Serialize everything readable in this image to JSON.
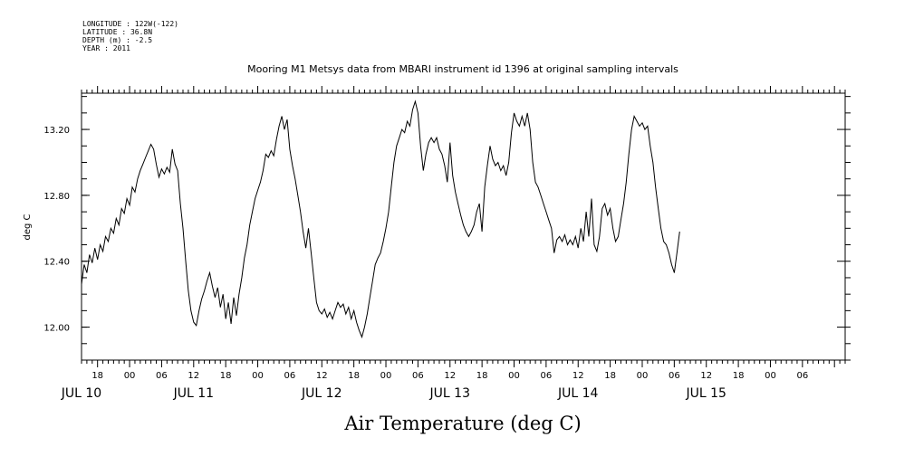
{
  "header": {
    "meta_lines": [
      "LONGITUDE : 122W(-122)",
      "LATITUDE : 36.8N",
      "DEPTH (m) : -2.5",
      "YEAR : 2011"
    ],
    "title": "Mooring M1 Metsys data from MBARI instrument id 1396 at original sampling intervals"
  },
  "chart_data": {
    "type": "line",
    "title": "Mooring M1 Metsys data from MBARI instrument id 1396 at original sampling intervals",
    "xlabel": "Air Temperature (deg C)",
    "ylabel": "deg C",
    "x_unit": "hours since 2011-07-10 00:00",
    "xlim": [
      15,
      158
    ],
    "ylim": [
      11.8,
      13.42
    ],
    "y_ticks": [
      12.0,
      12.4,
      12.8,
      13.2
    ],
    "y_tick_labels": [
      "12.00",
      "12.40",
      "12.80",
      "13.20"
    ],
    "x_hour_ticks": [
      {
        "x": 18,
        "label": "18"
      },
      {
        "x": 24,
        "label": "00"
      },
      {
        "x": 30,
        "label": "06"
      },
      {
        "x": 36,
        "label": "12"
      },
      {
        "x": 42,
        "label": "18"
      },
      {
        "x": 48,
        "label": "00"
      },
      {
        "x": 54,
        "label": "06"
      },
      {
        "x": 60,
        "label": "12"
      },
      {
        "x": 66,
        "label": "18"
      },
      {
        "x": 72,
        "label": "00"
      },
      {
        "x": 78,
        "label": "06"
      },
      {
        "x": 84,
        "label": "12"
      },
      {
        "x": 90,
        "label": "18"
      },
      {
        "x": 96,
        "label": "00"
      },
      {
        "x": 102,
        "label": "06"
      },
      {
        "x": 108,
        "label": "12"
      },
      {
        "x": 114,
        "label": "18"
      },
      {
        "x": 120,
        "label": "00"
      },
      {
        "x": 126,
        "label": "06"
      },
      {
        "x": 132,
        "label": "12"
      },
      {
        "x": 138,
        "label": "18"
      },
      {
        "x": 144,
        "label": "00"
      },
      {
        "x": 150,
        "label": "06"
      }
    ],
    "x_day_labels": [
      {
        "x": 15,
        "label": "JUL 10"
      },
      {
        "x": 36,
        "label": "JUL 11"
      },
      {
        "x": 60,
        "label": "JUL 12"
      },
      {
        "x": 84,
        "label": "JUL 13"
      },
      {
        "x": 108,
        "label": "JUL 14"
      },
      {
        "x": 132,
        "label": "JUL 15"
      }
    ],
    "series": [
      {
        "values": [
          [
            15.0,
            12.26
          ],
          [
            15.5,
            12.38
          ],
          [
            16.0,
            12.33
          ],
          [
            16.5,
            12.44
          ],
          [
            17.0,
            12.39
          ],
          [
            17.5,
            12.48
          ],
          [
            18.0,
            12.41
          ],
          [
            18.5,
            12.5
          ],
          [
            19.0,
            12.46
          ],
          [
            19.5,
            12.55
          ],
          [
            20.0,
            12.52
          ],
          [
            20.5,
            12.6
          ],
          [
            21.0,
            12.57
          ],
          [
            21.5,
            12.66
          ],
          [
            22.0,
            12.62
          ],
          [
            22.5,
            12.72
          ],
          [
            23.0,
            12.69
          ],
          [
            23.5,
            12.78
          ],
          [
            24.0,
            12.74
          ],
          [
            24.5,
            12.85
          ],
          [
            25.0,
            12.82
          ],
          [
            25.5,
            12.9
          ],
          [
            26.0,
            12.95
          ],
          [
            26.5,
            12.99
          ],
          [
            27.0,
            13.03
          ],
          [
            27.5,
            13.07
          ],
          [
            28.0,
            13.11
          ],
          [
            28.5,
            13.08
          ],
          [
            29.0,
            12.99
          ],
          [
            29.5,
            12.91
          ],
          [
            30.0,
            12.96
          ],
          [
            30.5,
            12.93
          ],
          [
            31.0,
            12.97
          ],
          [
            31.5,
            12.94
          ],
          [
            32.0,
            13.08
          ],
          [
            32.5,
            12.99
          ],
          [
            33.0,
            12.95
          ],
          [
            33.5,
            12.75
          ],
          [
            34.0,
            12.6
          ],
          [
            34.5,
            12.4
          ],
          [
            35.0,
            12.22
          ],
          [
            35.5,
            12.1
          ],
          [
            36.0,
            12.03
          ],
          [
            36.5,
            12.01
          ],
          [
            37.0,
            12.1
          ],
          [
            37.5,
            12.17
          ],
          [
            38.0,
            12.22
          ],
          [
            38.5,
            12.28
          ],
          [
            39.0,
            12.33
          ],
          [
            39.5,
            12.25
          ],
          [
            40.0,
            12.18
          ],
          [
            40.5,
            12.24
          ],
          [
            41.0,
            12.12
          ],
          [
            41.5,
            12.2
          ],
          [
            42.0,
            12.05
          ],
          [
            42.5,
            12.15
          ],
          [
            43.0,
            12.02
          ],
          [
            43.5,
            12.18
          ],
          [
            44.0,
            12.07
          ],
          [
            44.5,
            12.2
          ],
          [
            45.0,
            12.3
          ],
          [
            45.5,
            12.42
          ],
          [
            46.0,
            12.5
          ],
          [
            46.5,
            12.62
          ],
          [
            47.0,
            12.7
          ],
          [
            47.5,
            12.78
          ],
          [
            48.0,
            12.83
          ],
          [
            48.5,
            12.88
          ],
          [
            49.0,
            12.95
          ],
          [
            49.5,
            13.05
          ],
          [
            50.0,
            13.03
          ],
          [
            50.5,
            13.07
          ],
          [
            51.0,
            13.04
          ],
          [
            51.5,
            13.14
          ],
          [
            52.0,
            13.22
          ],
          [
            52.5,
            13.28
          ],
          [
            53.0,
            13.2
          ],
          [
            53.5,
            13.26
          ],
          [
            54.0,
            13.08
          ],
          [
            54.5,
            12.98
          ],
          [
            55.0,
            12.9
          ],
          [
            55.5,
            12.8
          ],
          [
            56.0,
            12.7
          ],
          [
            56.5,
            12.58
          ],
          [
            57.0,
            12.48
          ],
          [
            57.5,
            12.6
          ],
          [
            58.0,
            12.45
          ],
          [
            58.5,
            12.3
          ],
          [
            59.0,
            12.15
          ],
          [
            59.5,
            12.1
          ],
          [
            60.0,
            12.08
          ],
          [
            60.5,
            12.11
          ],
          [
            61.0,
            12.06
          ],
          [
            61.5,
            12.09
          ],
          [
            62.0,
            12.05
          ],
          [
            62.5,
            12.1
          ],
          [
            63.0,
            12.15
          ],
          [
            63.5,
            12.12
          ],
          [
            64.0,
            12.14
          ],
          [
            64.5,
            12.08
          ],
          [
            65.0,
            12.12
          ],
          [
            65.5,
            12.05
          ],
          [
            66.0,
            12.1
          ],
          [
            66.5,
            12.03
          ],
          [
            67.0,
            11.98
          ],
          [
            67.5,
            11.94
          ],
          [
            68.0,
            12.0
          ],
          [
            68.5,
            12.08
          ],
          [
            69.0,
            12.18
          ],
          [
            69.5,
            12.28
          ],
          [
            70.0,
            12.38
          ],
          [
            70.5,
            12.42
          ],
          [
            71.0,
            12.45
          ],
          [
            71.5,
            12.52
          ],
          [
            72.0,
            12.6
          ],
          [
            72.5,
            12.7
          ],
          [
            73.0,
            12.85
          ],
          [
            73.5,
            13.0
          ],
          [
            74.0,
            13.1
          ],
          [
            74.5,
            13.15
          ],
          [
            75.0,
            13.2
          ],
          [
            75.5,
            13.18
          ],
          [
            76.0,
            13.25
          ],
          [
            76.5,
            13.22
          ],
          [
            77.0,
            13.32
          ],
          [
            77.5,
            13.37
          ],
          [
            78.0,
            13.3
          ],
          [
            78.5,
            13.1
          ],
          [
            79.0,
            12.95
          ],
          [
            79.5,
            13.05
          ],
          [
            80.0,
            13.12
          ],
          [
            80.5,
            13.15
          ],
          [
            81.0,
            13.12
          ],
          [
            81.5,
            13.15
          ],
          [
            82.0,
            13.08
          ],
          [
            82.5,
            13.05
          ],
          [
            83.0,
            12.98
          ],
          [
            83.5,
            12.88
          ],
          [
            84.0,
            13.12
          ],
          [
            84.5,
            12.92
          ],
          [
            85.0,
            12.82
          ],
          [
            85.5,
            12.75
          ],
          [
            86.0,
            12.68
          ],
          [
            86.5,
            12.62
          ],
          [
            87.0,
            12.58
          ],
          [
            87.5,
            12.55
          ],
          [
            88.0,
            12.58
          ],
          [
            88.5,
            12.62
          ],
          [
            89.0,
            12.7
          ],
          [
            89.5,
            12.75
          ],
          [
            90.0,
            12.58
          ],
          [
            90.5,
            12.85
          ],
          [
            91.0,
            12.98
          ],
          [
            91.5,
            13.1
          ],
          [
            92.0,
            13.02
          ],
          [
            92.5,
            12.98
          ],
          [
            93.0,
            13.0
          ],
          [
            93.5,
            12.95
          ],
          [
            94.0,
            12.98
          ],
          [
            94.5,
            12.92
          ],
          [
            95.0,
            13.0
          ],
          [
            95.5,
            13.18
          ],
          [
            96.0,
            13.3
          ],
          [
            96.5,
            13.25
          ],
          [
            97.0,
            13.22
          ],
          [
            97.5,
            13.28
          ],
          [
            98.0,
            13.22
          ],
          [
            98.5,
            13.3
          ],
          [
            99.0,
            13.2
          ],
          [
            99.5,
            13.0
          ],
          [
            100.0,
            12.88
          ],
          [
            100.5,
            12.85
          ],
          [
            101.0,
            12.8
          ],
          [
            101.5,
            12.75
          ],
          [
            102.0,
            12.7
          ],
          [
            102.5,
            12.65
          ],
          [
            103.0,
            12.6
          ],
          [
            103.5,
            12.45
          ],
          [
            104.0,
            12.53
          ],
          [
            104.5,
            12.55
          ],
          [
            105.0,
            12.52
          ],
          [
            105.5,
            12.56
          ],
          [
            106.0,
            12.5
          ],
          [
            106.5,
            12.53
          ],
          [
            107.0,
            12.5
          ],
          [
            107.5,
            12.55
          ],
          [
            108.0,
            12.48
          ],
          [
            108.5,
            12.6
          ],
          [
            109.0,
            12.52
          ],
          [
            109.5,
            12.7
          ],
          [
            110.0,
            12.55
          ],
          [
            110.5,
            12.78
          ],
          [
            111.0,
            12.5
          ],
          [
            111.5,
            12.46
          ],
          [
            112.0,
            12.55
          ],
          [
            112.5,
            12.72
          ],
          [
            113.0,
            12.75
          ],
          [
            113.5,
            12.68
          ],
          [
            114.0,
            12.72
          ],
          [
            114.5,
            12.6
          ],
          [
            115.0,
            12.52
          ],
          [
            115.5,
            12.55
          ],
          [
            116.0,
            12.65
          ],
          [
            116.5,
            12.75
          ],
          [
            117.0,
            12.88
          ],
          [
            117.5,
            13.05
          ],
          [
            118.0,
            13.2
          ],
          [
            118.5,
            13.28
          ],
          [
            119.0,
            13.25
          ],
          [
            119.5,
            13.22
          ],
          [
            120.0,
            13.24
          ],
          [
            120.5,
            13.2
          ],
          [
            121.0,
            13.22
          ],
          [
            121.5,
            13.1
          ],
          [
            122.0,
            13.0
          ],
          [
            122.5,
            12.85
          ],
          [
            123.0,
            12.72
          ],
          [
            123.5,
            12.6
          ],
          [
            124.0,
            12.52
          ],
          [
            124.5,
            12.5
          ],
          [
            125.0,
            12.45
          ],
          [
            125.5,
            12.38
          ],
          [
            126.0,
            12.33
          ],
          [
            126.5,
            12.45
          ],
          [
            127.0,
            12.58
          ]
        ]
      }
    ],
    "grid": false,
    "legend": "none",
    "line_color": "#000000"
  }
}
